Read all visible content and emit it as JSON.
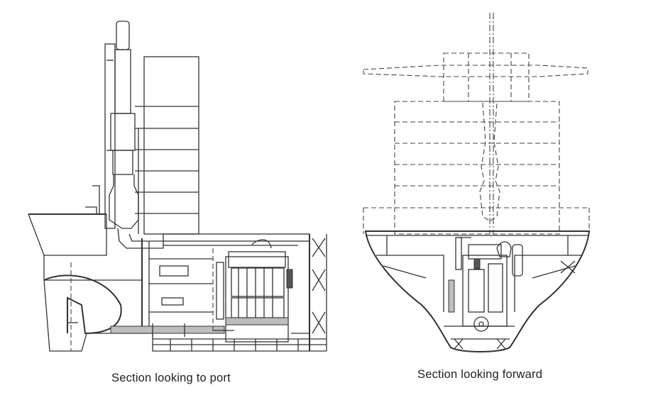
{
  "captions": {
    "left": "Section looking to port",
    "right": "Section looking forward"
  },
  "colors": {
    "line": "#333333",
    "background": "#ffffff",
    "shading": "#bdbdbd"
  }
}
